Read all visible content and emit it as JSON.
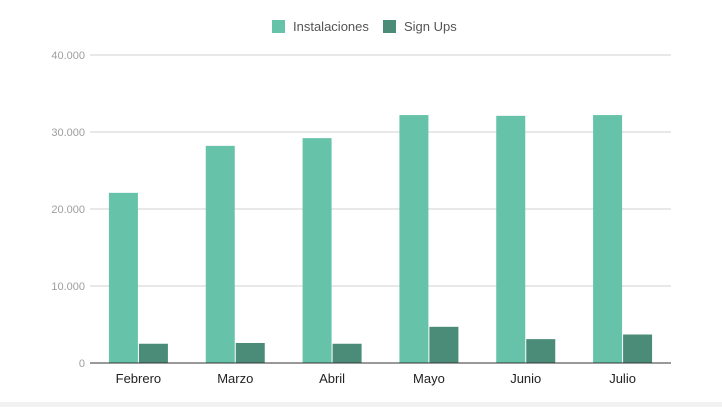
{
  "colors": {
    "instalaciones": "#66c2a8",
    "signups": "#4a8c78",
    "grid": "#d0d0d0",
    "axis": "#333333"
  },
  "chart_data": {
    "type": "bar",
    "categories": [
      "Febrero",
      "Marzo",
      "Abril",
      "Mayo",
      "Junio",
      "Julio"
    ],
    "series": [
      {
        "name": "Instalaciones",
        "values": [
          22100,
          28200,
          29200,
          32200,
          32100,
          32200
        ]
      },
      {
        "name": "Sign Ups",
        "values": [
          2500,
          2600,
          2500,
          4700,
          3100,
          3700
        ]
      }
    ],
    "yticks": [
      "0",
      "10.000",
      "20.000",
      "30.000",
      "40.000"
    ],
    "ylim": [
      0,
      40000
    ],
    "grid": true,
    "legend": "top-center",
    "title": "",
    "xlabel": "",
    "ylabel": ""
  }
}
